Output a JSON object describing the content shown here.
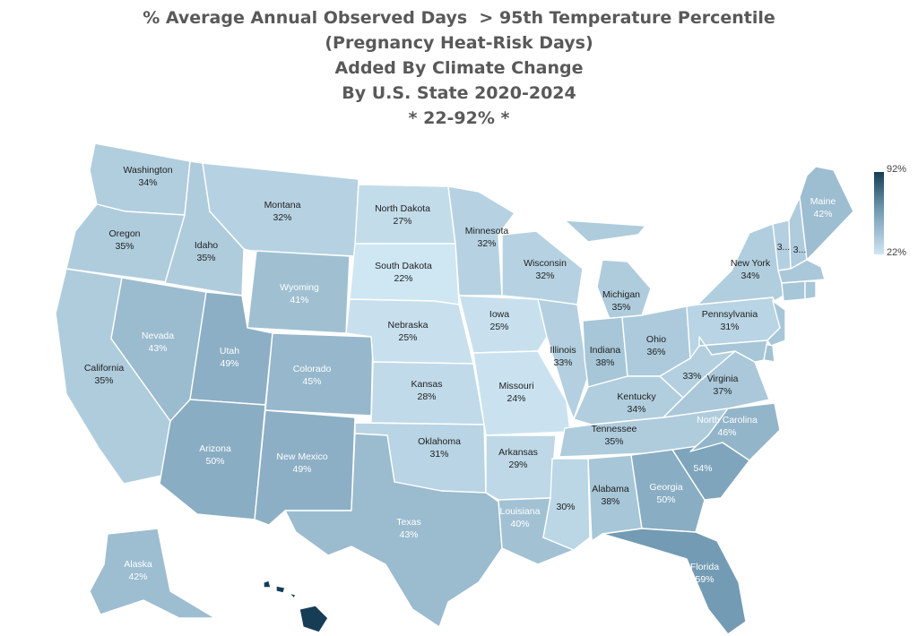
{
  "title_lines": [
    "% Average Annual Observed Days  > 95th Temperature Percentile",
    "(Pregnancy Heat-Risk Days)",
    "Added By Climate Change",
    "By U.S. State 2020-2024",
    "* 22-92% *"
  ],
  "legend": {
    "max_label": "92%",
    "min_label": "22%",
    "max_value": 92,
    "min_value": 22,
    "color_high": "#173d56",
    "color_low": "#cfe6f3"
  },
  "states": [
    {
      "id": "WA",
      "name": "Washington",
      "value": 34,
      "label": "34%"
    },
    {
      "id": "OR",
      "name": "Oregon",
      "value": 35,
      "label": "35%"
    },
    {
      "id": "CA",
      "name": "California",
      "value": 35,
      "label": "35%"
    },
    {
      "id": "ID",
      "name": "Idaho",
      "value": 35,
      "label": "35%"
    },
    {
      "id": "NV",
      "name": "Nevada",
      "value": 43,
      "label": "43%"
    },
    {
      "id": "MT",
      "name": "Montana",
      "value": 32,
      "label": "32%"
    },
    {
      "id": "WY",
      "name": "Wyoming",
      "value": 41,
      "label": "41%"
    },
    {
      "id": "UT",
      "name": "Utah",
      "value": 49,
      "label": "49%"
    },
    {
      "id": "AZ",
      "name": "Arizona",
      "value": 50,
      "label": "50%"
    },
    {
      "id": "CO",
      "name": "Colorado",
      "value": 45,
      "label": "45%"
    },
    {
      "id": "NM",
      "name": "New Mexico",
      "value": 49,
      "label": "49%"
    },
    {
      "id": "ND",
      "name": "North Dakota",
      "value": 27,
      "label": "27%"
    },
    {
      "id": "SD",
      "name": "South Dakota",
      "value": 22,
      "label": "22%"
    },
    {
      "id": "NE",
      "name": "Nebraska",
      "value": 25,
      "label": "25%"
    },
    {
      "id": "KS",
      "name": "Kansas",
      "value": 28,
      "label": "28%"
    },
    {
      "id": "OK",
      "name": "Oklahoma",
      "value": 31,
      "label": "31%"
    },
    {
      "id": "TX",
      "name": "Texas",
      "value": 43,
      "label": "43%"
    },
    {
      "id": "MN",
      "name": "Minnesota",
      "value": 32,
      "label": "32%"
    },
    {
      "id": "IA",
      "name": "Iowa",
      "value": 25,
      "label": "25%"
    },
    {
      "id": "MO",
      "name": "Missouri",
      "value": 24,
      "label": "24%"
    },
    {
      "id": "AR",
      "name": "Arkansas",
      "value": 29,
      "label": "29%"
    },
    {
      "id": "LA",
      "name": "Louisiana",
      "value": 40,
      "label": "40%"
    },
    {
      "id": "WI",
      "name": "Wisconsin",
      "value": 32,
      "label": "32%"
    },
    {
      "id": "IL",
      "name": "Illinois",
      "value": 33,
      "label": "33%"
    },
    {
      "id": "MI",
      "name": "Michigan",
      "value": 35,
      "label": "35%"
    },
    {
      "id": "IN",
      "name": "Indiana",
      "value": 38,
      "label": "38%"
    },
    {
      "id": "OH",
      "name": "Ohio",
      "value": 36,
      "label": "36%"
    },
    {
      "id": "KY",
      "name": "Kentucky",
      "value": 34,
      "label": "34%"
    },
    {
      "id": "TN",
      "name": "Tennessee",
      "value": 35,
      "label": "35%"
    },
    {
      "id": "MS",
      "name": "",
      "value": 30,
      "label": "30%"
    },
    {
      "id": "AL",
      "name": "Alabama",
      "value": 38,
      "label": "38%"
    },
    {
      "id": "GA",
      "name": "Georgia",
      "value": 50,
      "label": "50%"
    },
    {
      "id": "FL",
      "name": "Florida",
      "value": 59,
      "label": "59%"
    },
    {
      "id": "SC",
      "name": "",
      "value": 54,
      "label": "54%"
    },
    {
      "id": "NC",
      "name": "North Carolina",
      "value": 46,
      "label": "46%"
    },
    {
      "id": "VA",
      "name": "Virginia",
      "value": 37,
      "label": "37%"
    },
    {
      "id": "WV",
      "name": "",
      "value": 33,
      "label": "33%"
    },
    {
      "id": "PA",
      "name": "Pennsylvania",
      "value": 31,
      "label": "31%"
    },
    {
      "id": "NY",
      "name": "New York",
      "value": 34,
      "label": "34%"
    },
    {
      "id": "ME",
      "name": "Maine",
      "value": 42,
      "label": "42%"
    },
    {
      "id": "VT",
      "name": "3...",
      "value": 33,
      "label": ""
    },
    {
      "id": "NH",
      "name": "3...",
      "value": 35,
      "label": ""
    },
    {
      "id": "MA",
      "name": "",
      "value": 37,
      "label": ""
    },
    {
      "id": "CT",
      "name": "",
      "value": 38,
      "label": ""
    },
    {
      "id": "RI",
      "name": "",
      "value": 38,
      "label": ""
    },
    {
      "id": "NJ",
      "name": "",
      "value": 38,
      "label": ""
    },
    {
      "id": "DE",
      "name": "",
      "value": 40,
      "label": ""
    },
    {
      "id": "MD",
      "name": "",
      "value": 38,
      "label": ""
    },
    {
      "id": "AK",
      "name": "Alaska",
      "value": 42,
      "label": "42%"
    },
    {
      "id": "HI",
      "name": "",
      "value": 92,
      "label": ""
    }
  ]
}
